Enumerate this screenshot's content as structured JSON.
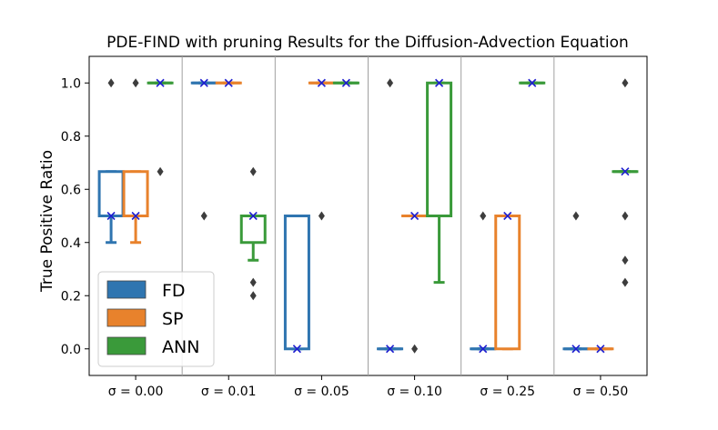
{
  "chart_data": {
    "type": "box",
    "title": "PDE-FIND with pruning Results for the Diffusion-Advection Equation",
    "xlabel": "",
    "ylabel": "True Positive Ratio",
    "ylim": [
      -0.1,
      1.1
    ],
    "yticks": [
      "0.0",
      "0.2",
      "0.4",
      "0.6",
      "0.8",
      "1.0"
    ],
    "ytick_values": [
      0,
      0.2,
      0.4,
      0.6,
      0.8,
      1.0
    ],
    "categories": [
      "σ = 0.00",
      "σ = 0.01",
      "σ = 0.05",
      "σ = 0.10",
      "σ = 0.25",
      "σ = 0.50"
    ],
    "legend": {
      "position": "lower-left"
    },
    "series": [
      {
        "name": "FD",
        "color": "#2f75b0",
        "boxes": [
          {
            "q1": 0.5,
            "median": 0.5,
            "q3": 0.6667,
            "whislo": 0.4,
            "whishi": 0.6667,
            "mean": 0.5,
            "fliers": [
              1.0
            ]
          },
          {
            "q1": 1.0,
            "median": 1.0,
            "q3": 1.0,
            "whislo": 1.0,
            "whishi": 1.0,
            "mean": 1.0,
            "fliers": [
              0.5
            ]
          },
          {
            "q1": 0.0,
            "median": 0.5,
            "q3": 0.5,
            "whislo": 0.0,
            "whishi": 0.5,
            "mean": 0.0,
            "fliers": []
          },
          {
            "q1": 0.0,
            "median": 0.0,
            "q3": 0.0,
            "whislo": 0.0,
            "whishi": 0.0,
            "mean": 0.0,
            "fliers": [
              1.0
            ]
          },
          {
            "q1": 0.0,
            "median": 0.0,
            "q3": 0.0,
            "whislo": 0.0,
            "whishi": 0.0,
            "mean": 0.0,
            "fliers": [
              0.5
            ]
          },
          {
            "q1": 0.0,
            "median": 0.0,
            "q3": 0.0,
            "whislo": 0.0,
            "whishi": 0.0,
            "mean": 0.0,
            "fliers": [
              0.5
            ]
          }
        ]
      },
      {
        "name": "SP",
        "color": "#e8822c",
        "boxes": [
          {
            "q1": 0.5,
            "median": 0.5,
            "q3": 0.6667,
            "whislo": 0.4,
            "whishi": 0.6667,
            "mean": 0.5,
            "fliers": [
              1.0
            ]
          },
          {
            "q1": 1.0,
            "median": 1.0,
            "q3": 1.0,
            "whislo": 1.0,
            "whishi": 1.0,
            "mean": 1.0,
            "fliers": []
          },
          {
            "q1": 1.0,
            "median": 1.0,
            "q3": 1.0,
            "whislo": 1.0,
            "whishi": 1.0,
            "mean": 1.0,
            "fliers": [
              0.5
            ]
          },
          {
            "q1": 0.5,
            "median": 0.5,
            "q3": 0.5,
            "whislo": 0.5,
            "whishi": 0.5,
            "mean": 0.5,
            "fliers": [
              0.0
            ]
          },
          {
            "q1": 0.0,
            "median": 0.5,
            "q3": 0.5,
            "whislo": 0.0,
            "whishi": 0.5,
            "mean": 0.5,
            "fliers": []
          },
          {
            "q1": 0.0,
            "median": 0.0,
            "q3": 0.0,
            "whislo": 0.0,
            "whishi": 0.0,
            "mean": 0.0,
            "fliers": []
          }
        ]
      },
      {
        "name": "ANN",
        "color": "#3a9a3a",
        "boxes": [
          {
            "q1": 1.0,
            "median": 1.0,
            "q3": 1.0,
            "whislo": 1.0,
            "whishi": 1.0,
            "mean": 1.0,
            "fliers": [
              0.6667
            ]
          },
          {
            "q1": 0.4,
            "median": 0.5,
            "q3": 0.5,
            "whislo": 0.3333,
            "whishi": 0.5,
            "mean": 0.5,
            "fliers": [
              0.6667,
              0.25,
              0.2
            ]
          },
          {
            "q1": 1.0,
            "median": 1.0,
            "q3": 1.0,
            "whislo": 1.0,
            "whishi": 1.0,
            "mean": 1.0,
            "fliers": []
          },
          {
            "q1": 0.5,
            "median": 0.5,
            "q3": 1.0,
            "whislo": 0.25,
            "whishi": 1.0,
            "mean": 1.0,
            "fliers": []
          },
          {
            "q1": 1.0,
            "median": 1.0,
            "q3": 1.0,
            "whislo": 1.0,
            "whishi": 1.0,
            "mean": 1.0,
            "fliers": []
          },
          {
            "q1": 0.6667,
            "median": 0.6667,
            "q3": 0.6667,
            "whislo": 0.6667,
            "whishi": 0.6667,
            "mean": 0.6667,
            "fliers": [
              1.0,
              0.5,
              0.3333,
              0.25
            ]
          }
        ]
      }
    ],
    "mean_marker_color": "#1f1fd0",
    "flier_color": "#3d3d3d",
    "separator_color": "#a0a0a0"
  }
}
